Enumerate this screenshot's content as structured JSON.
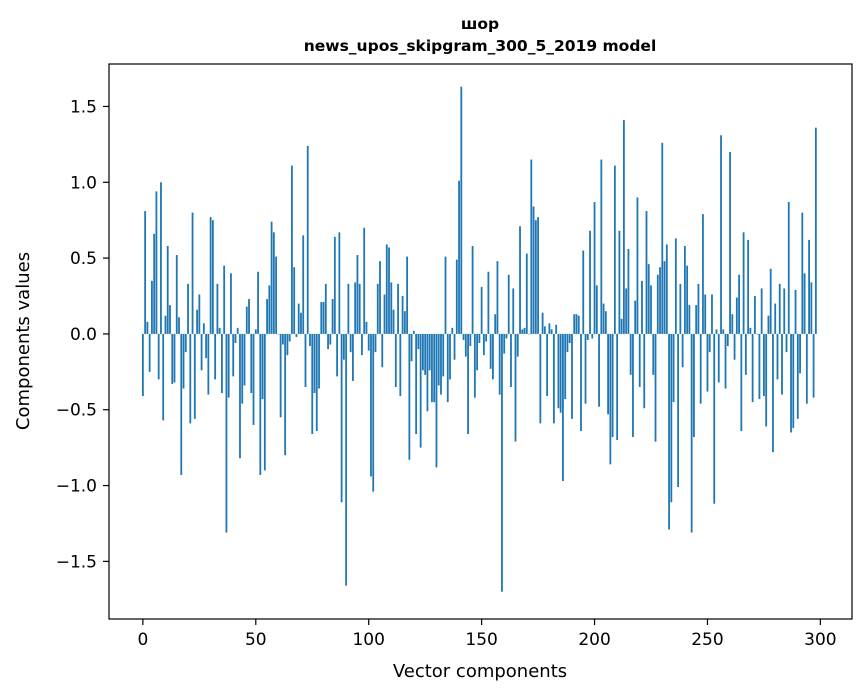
{
  "chart_data": {
    "type": "bar",
    "title_line1": "шор",
    "title_line2": "news_upos_skipgram_300_5_2019 model",
    "xlabel": "Vector components",
    "ylabel": "Components values",
    "xlim": [
      -15,
      314
    ],
    "ylim": [
      -1.88,
      1.78
    ],
    "xticks": [
      0,
      50,
      100,
      150,
      200,
      250,
      300
    ],
    "xtick_labels": [
      "0",
      "50",
      "100",
      "150",
      "200",
      "250",
      "300"
    ],
    "yticks": [
      -1.5,
      -1.0,
      -0.5,
      0.0,
      0.5,
      1.0,
      1.5
    ],
    "ytick_labels": [
      "−1.5",
      "−1.0",
      "−0.5",
      "0.0",
      "0.5",
      "1.0",
      "1.5"
    ],
    "grid": false,
    "bar_color": "#1f77b4",
    "values": [
      -0.41,
      0.81,
      0.08,
      -0.25,
      0.35,
      0.66,
      0.94,
      -0.3,
      1.0,
      -0.57,
      0.12,
      0.58,
      0.19,
      -0.33,
      -0.32,
      0.52,
      0.11,
      -0.93,
      -0.36,
      -0.12,
      0.33,
      -0.59,
      0.8,
      -0.56,
      0.16,
      0.26,
      -0.24,
      0.07,
      -0.16,
      -0.4,
      0.77,
      0.75,
      -0.3,
      0.33,
      0.04,
      -0.39,
      0.45,
      -1.31,
      -0.42,
      0.4,
      -0.28,
      -0.06,
      0.04,
      -0.82,
      -0.46,
      -0.34,
      0.18,
      0.23,
      -0.39,
      -0.6,
      0.03,
      0.41,
      -0.93,
      -0.43,
      -0.9,
      0.23,
      0.32,
      0.74,
      0.67,
      0.51,
      0.0,
      -0.55,
      -0.07,
      -0.8,
      -0.14,
      -0.05,
      1.11,
      0.44,
      -0.02,
      0.2,
      0.14,
      0.65,
      -0.35,
      1.24,
      -0.08,
      -0.66,
      -0.39,
      -0.64,
      -0.36,
      0.21,
      0.21,
      0.33,
      -0.1,
      -0.07,
      0.23,
      0.64,
      -0.28,
      0.67,
      -1.11,
      -0.17,
      -1.66,
      0.33,
      -0.12,
      -0.31,
      0.34,
      0.52,
      0.33,
      -0.14,
      0.7,
      0.08,
      -0.11,
      -0.94,
      -1.04,
      -0.12,
      0.33,
      0.48,
      -0.22,
      0.26,
      0.59,
      0.57,
      0.34,
      0.16,
      -0.35,
      0.33,
      -0.41,
      0.25,
      0.15,
      0.51,
      -0.83,
      -0.18,
      0.02,
      -0.66,
      -0.1,
      -0.75,
      -0.24,
      -0.27,
      -0.51,
      -0.24,
      -0.45,
      -0.45,
      -0.88,
      -0.34,
      -0.4,
      -0.28,
      0.51,
      -0.45,
      -0.3,
      0.04,
      -0.17,
      0.49,
      1.01,
      1.63,
      -0.04,
      -0.15,
      -0.66,
      -0.08,
      0.58,
      -0.42,
      -0.24,
      -0.06,
      0.31,
      -0.14,
      -0.05,
      0.41,
      -0.23,
      -0.3,
      0.13,
      0.48,
      -0.4,
      -1.7,
      -0.13,
      -0.03,
      0.39,
      -0.35,
      0.3,
      -0.71,
      -0.15,
      0.71,
      0.03,
      0.04,
      0.53,
      0.0,
      1.15,
      0.84,
      0.75,
      0.77,
      -0.59,
      0.14,
      0.05,
      -0.41,
      0.07,
      0.03,
      -0.59,
      0.06,
      -0.49,
      -0.52,
      -0.97,
      -0.43,
      -0.12,
      -0.06,
      -0.56,
      0.13,
      0.13,
      0.12,
      -0.64,
      0.55,
      -0.46,
      -0.04,
      0.68,
      -0.03,
      0.87,
      0.32,
      -0.48,
      1.15,
      0.2,
      0.15,
      -0.53,
      -0.86,
      -0.68,
      1.11,
      -0.7,
      0.68,
      0.1,
      1.41,
      0.3,
      0.56,
      -0.27,
      -0.68,
      0.22,
      0.9,
      -0.35,
      0.35,
      -0.49,
      0.81,
      0.46,
      0.32,
      -0.27,
      -0.71,
      0.39,
      0.44,
      1.26,
      0.48,
      0.59,
      -1.29,
      -1.11,
      -0.45,
      0.63,
      -1.01,
      0.33,
      -0.22,
      0.58,
      0.45,
      0.19,
      -1.31,
      -0.68,
      0.19,
      0.33,
      -0.46,
      0.79,
      0.26,
      -0.38,
      -0.12,
      0.26,
      -1.12,
      0.03,
      -0.32,
      1.31,
      0.03,
      -0.36,
      -0.08,
      1.2,
      0.13,
      -0.17,
      0.24,
      0.39,
      -0.64,
      0.67,
      -0.27,
      0.62,
      0.04,
      -0.45,
      0.25,
      0.0,
      -0.43,
      0.3,
      -0.41,
      -0.61,
      0.12,
      0.43,
      -0.78,
      0.2,
      -0.3,
      0.33,
      -0.4,
      0.3,
      -0.12,
      0.87,
      -0.65,
      -0.62,
      0.29,
      -0.56,
      -0.26,
      0.8,
      0.4,
      -0.46,
      0.62,
      0.34,
      -0.42,
      1.36
    ]
  }
}
